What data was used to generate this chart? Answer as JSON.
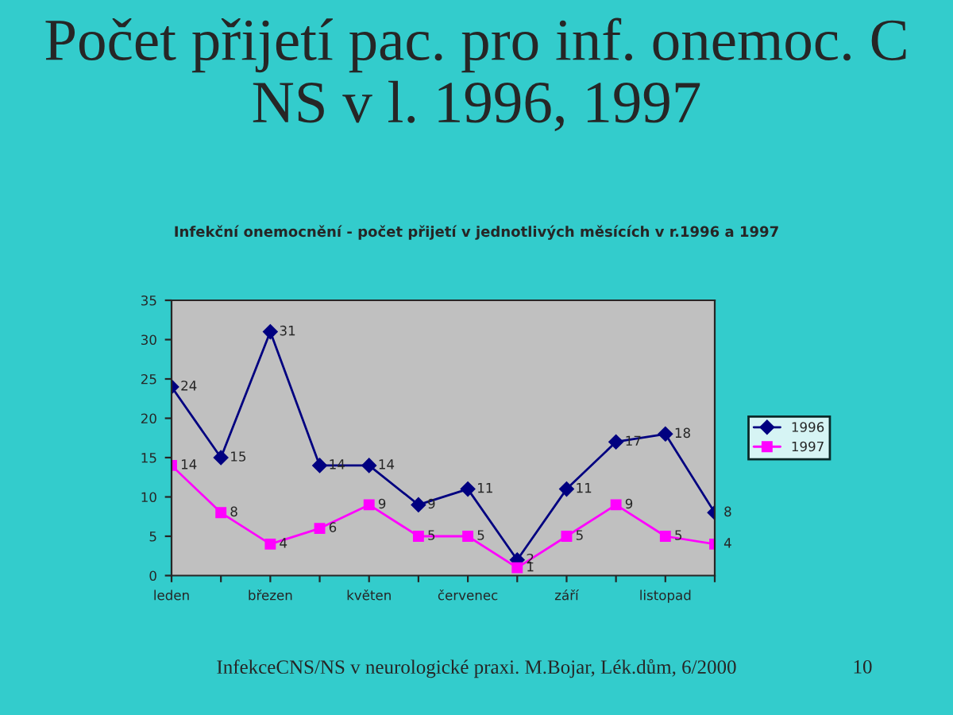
{
  "chart_data": {
    "type": "line",
    "title": "Počet přijetí pac. pro inf. onemoc. C NS v l. 1996, 1997",
    "subtitle": "Infekční onemocnění - počet přijetí v jednotlivých měsících v r.1996 a 1997",
    "categories": [
      "leden",
      null,
      "březen",
      null,
      "květen",
      null,
      "červenec",
      null,
      "září",
      null,
      "listopad",
      null
    ],
    "series": [
      {
        "name": "1996",
        "color": "#000080",
        "marker": "diamond",
        "values": [
          24,
          15,
          31,
          14,
          14,
          9,
          11,
          2,
          11,
          17,
          18,
          8
        ]
      },
      {
        "name": "1997",
        "color": "#ff00ff",
        "marker": "square",
        "values": [
          14,
          8,
          4,
          6,
          9,
          5,
          5,
          1,
          5,
          9,
          5,
          4
        ]
      }
    ],
    "ylim": [
      0,
      35
    ],
    "yticks": [
      0,
      5,
      10,
      15,
      20,
      25,
      30,
      35
    ],
    "data_labels": true,
    "grid": false,
    "legend": "right",
    "annotations": [
      "InfekceCNS/NS v neurologické praxi. M.Bojar, Lék.dům, 6/2000",
      "10"
    ]
  }
}
